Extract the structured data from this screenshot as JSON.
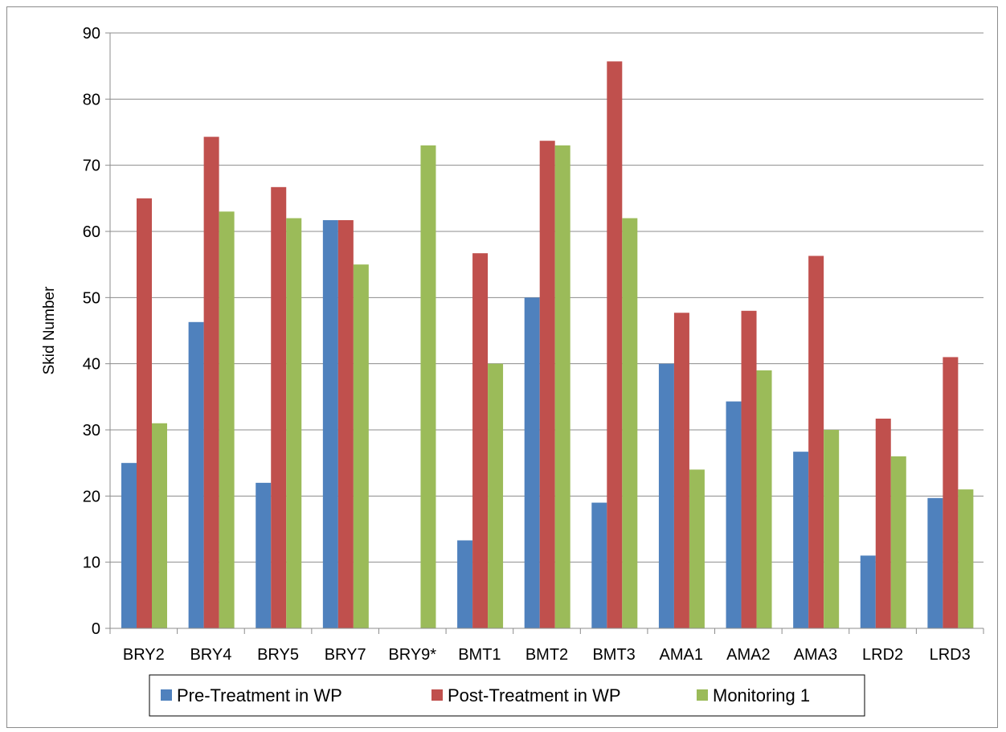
{
  "chart_data": {
    "type": "bar",
    "title": "",
    "xlabel": "",
    "ylabel": "Skid Number",
    "ylim": [
      0,
      90
    ],
    "yticks": [
      0,
      10,
      20,
      30,
      40,
      50,
      60,
      70,
      80,
      90
    ],
    "grid": true,
    "legend_position": "bottom",
    "categories": [
      "BRY2",
      "BRY4",
      "BRY5",
      "BRY7",
      "BRY9*",
      "BMT1",
      "BMT2",
      "BMT3",
      "AMA1",
      "AMA2",
      "AMA3",
      "LRD2",
      "LRD3"
    ],
    "series": [
      {
        "name": "Pre-Treatment in WP",
        "color": "#4F81BD",
        "values": [
          25,
          46.3,
          22,
          61.7,
          null,
          13.3,
          50,
          19,
          40,
          34.3,
          26.7,
          11,
          19.7
        ]
      },
      {
        "name": "Post-Treatment in WP",
        "color": "#C0504D",
        "values": [
          65,
          74.3,
          66.7,
          61.7,
          null,
          56.7,
          73.7,
          85.7,
          47.7,
          48,
          56.3,
          31.7,
          41
        ]
      },
      {
        "name": "Monitoring 1",
        "color": "#9BBB59",
        "values": [
          31,
          63,
          62,
          55,
          73,
          40,
          73,
          62,
          24,
          39,
          30,
          26,
          21
        ]
      }
    ]
  }
}
